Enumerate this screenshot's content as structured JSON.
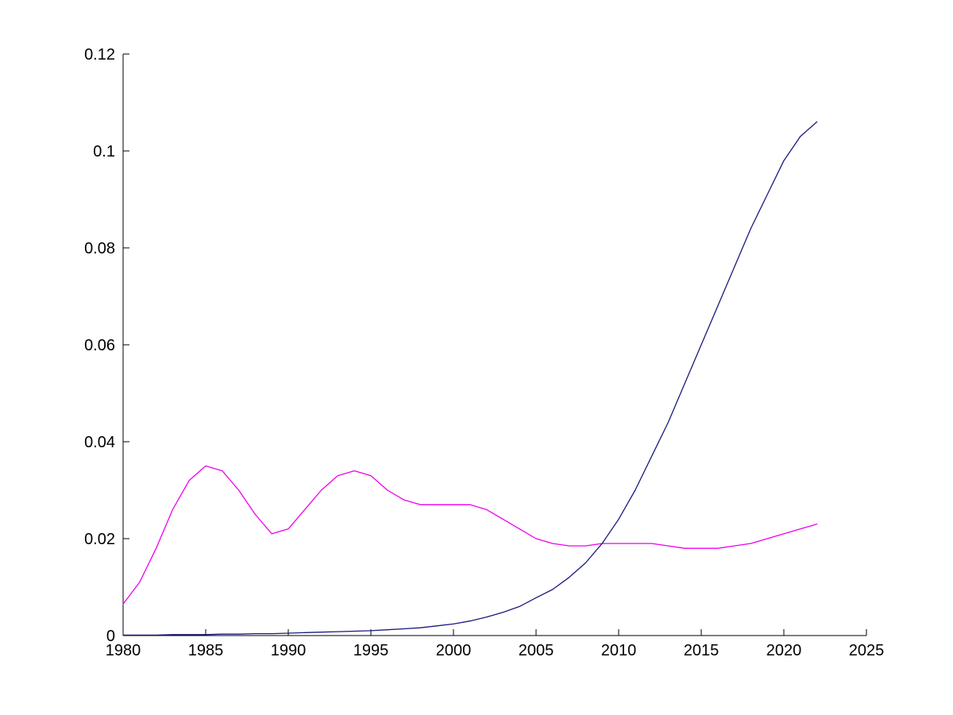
{
  "figure": {
    "title": "",
    "background": "#ffffff"
  },
  "chart_data": {
    "type": "line",
    "title": "",
    "xlabel": "",
    "ylabel": "",
    "grid": false,
    "legend_position": "none",
    "xlim": [
      1980,
      2025
    ],
    "ylim": [
      0,
      0.12
    ],
    "x_ticks": [
      1980,
      1985,
      1990,
      1995,
      2000,
      2005,
      2010,
      2015,
      2020,
      2025
    ],
    "x_tick_labels": [
      "1980",
      "1985",
      "1990",
      "1995",
      "2000",
      "2005",
      "2010",
      "2015",
      "2020",
      "2025"
    ],
    "y_ticks": [
      0,
      0.02,
      0.04,
      0.06,
      0.08,
      0.1,
      0.12
    ],
    "y_tick_labels": [
      "0",
      "0.02",
      "0.04",
      "0.06",
      "0.08",
      "0.1",
      "0.12"
    ],
    "axis_color": "#000000",
    "x": [
      1980,
      1981,
      1982,
      1983,
      1984,
      1985,
      1986,
      1987,
      1988,
      1989,
      1990,
      1991,
      1992,
      1993,
      1994,
      1995,
      1996,
      1997,
      1998,
      1999,
      2000,
      2001,
      2002,
      2003,
      2004,
      2005,
      2006,
      2007,
      2008,
      2009,
      2010,
      2011,
      2012,
      2013,
      2014,
      2015,
      2016,
      2017,
      2018,
      2019,
      2020,
      2021,
      2022
    ],
    "series": [
      {
        "name": "magenta-series",
        "color": "#ee00ee",
        "values": [
          0.0065,
          0.011,
          0.018,
          0.026,
          0.032,
          0.035,
          0.034,
          0.03,
          0.025,
          0.021,
          0.022,
          0.026,
          0.03,
          0.033,
          0.034,
          0.033,
          0.03,
          0.028,
          0.027,
          0.027,
          0.027,
          0.027,
          0.026,
          0.024,
          0.022,
          0.02,
          0.019,
          0.0185,
          0.0185,
          0.019,
          0.019,
          0.019,
          0.019,
          0.0185,
          0.018,
          0.018,
          0.018,
          0.0185,
          0.019,
          0.02,
          0.021,
          0.022,
          0.023
        ]
      },
      {
        "name": "dark-blue-series",
        "color": "#1a1a7e",
        "values": [
          0.0001,
          0.0001,
          0.0001,
          0.0002,
          0.0002,
          0.0002,
          0.0003,
          0.0003,
          0.0004,
          0.0004,
          0.0005,
          0.0006,
          0.0007,
          0.0008,
          0.0009,
          0.001,
          0.0012,
          0.0014,
          0.0016,
          0.002,
          0.0024,
          0.003,
          0.0038,
          0.0048,
          0.006,
          0.0078,
          0.0095,
          0.012,
          0.015,
          0.019,
          0.024,
          0.03,
          0.037,
          0.044,
          0.052,
          0.06,
          0.068,
          0.076,
          0.084,
          0.091,
          0.098,
          0.103,
          0.106
        ]
      }
    ]
  }
}
